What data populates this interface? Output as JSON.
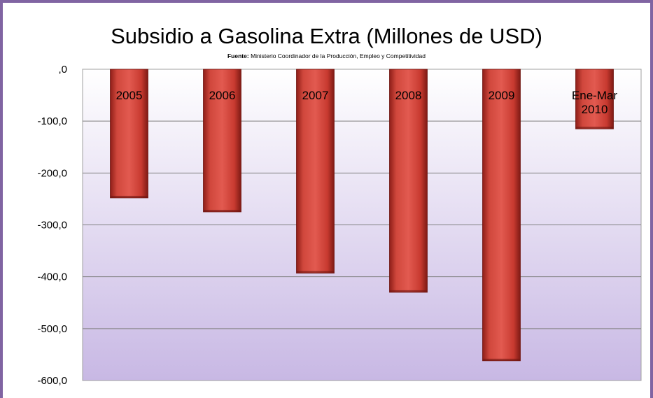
{
  "chart_data": {
    "type": "bar",
    "title": "Subsidio a Gasolina Extra (Millones de USD)",
    "source_label": "Fuente:",
    "source_text": "Ministerio Coordinador de la Producción, Empleo y Competitividad",
    "categories": [
      "2005",
      "2006",
      "2007",
      "2008",
      "2009",
      "Ene-Mar 2010"
    ],
    "values": [
      -248,
      -275,
      -393,
      -430,
      -562,
      -115
    ],
    "ylim": [
      -600,
      0
    ],
    "yticks": [
      0,
      -100,
      -200,
      -300,
      -400,
      -500,
      -600
    ],
    "ytick_labels": [
      ",0",
      "-100,0",
      "-200,0",
      "-300,0",
      "-400,0",
      "-500,0",
      "-600,0"
    ],
    "grid": true,
    "xlabel": "",
    "ylabel": ""
  },
  "colors": {
    "frame_border": "#8064a2",
    "bar_fill": "#c0392b",
    "plot_bg_top": "#ffffff",
    "plot_bg_bottom": "#c8b8e4",
    "gridline": "#7f7f7f"
  }
}
